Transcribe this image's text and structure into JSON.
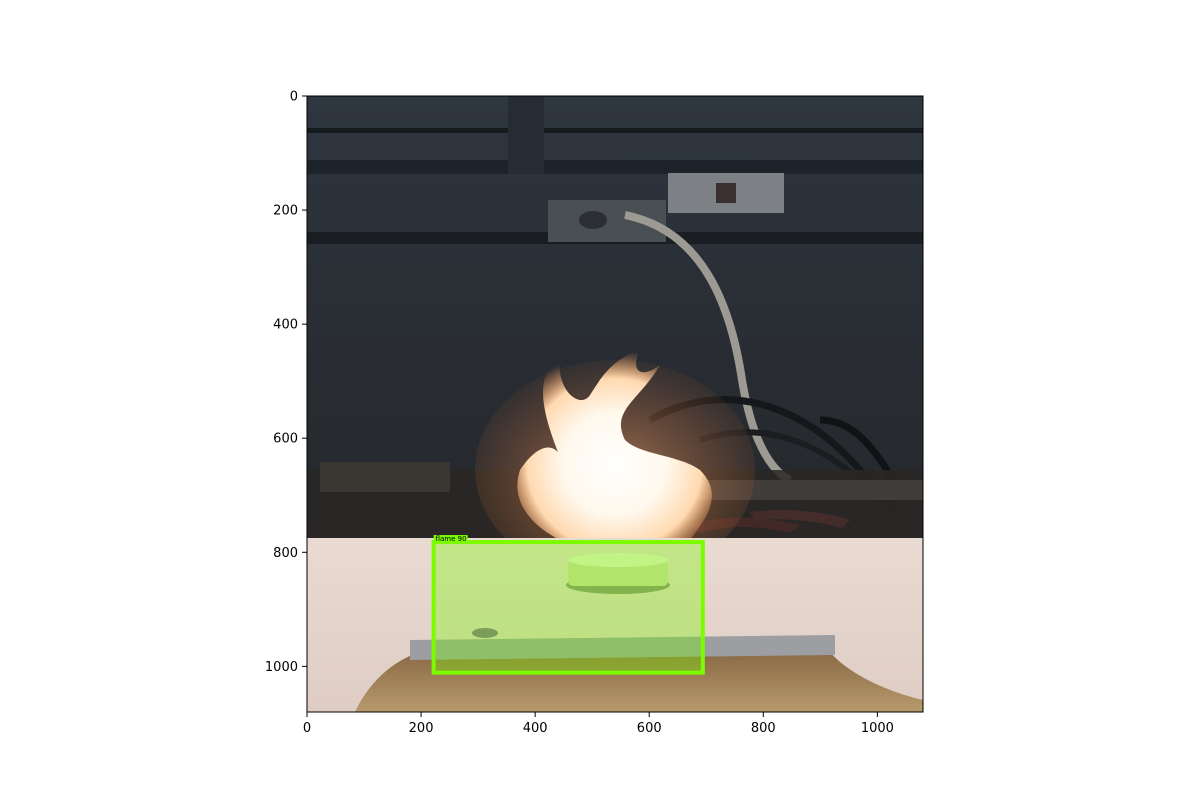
{
  "figure": {
    "xticks": [
      "0",
      "200",
      "400",
      "600",
      "800",
      "1000"
    ],
    "yticks": [
      "0",
      "200",
      "400",
      "600",
      "800",
      "1000"
    ],
    "xtick_values": [
      0,
      200,
      400,
      600,
      800,
      1000
    ],
    "ytick_values": [
      0,
      200,
      400,
      600,
      800,
      1000
    ],
    "image_extent_x": [
      0,
      1080
    ],
    "image_extent_y": [
      0,
      1080
    ],
    "y_axis_inverted": true
  },
  "detection": {
    "label": "flame 90",
    "box_color": "#7cfc00",
    "box_xmin": 222,
    "box_ymin": 782,
    "box_xmax": 694,
    "box_ymax": 1011
  },
  "scene": {
    "description_tags": [
      "flame",
      "crucible",
      "cable",
      "power-strip",
      "insulation-board",
      "wood-base"
    ]
  }
}
